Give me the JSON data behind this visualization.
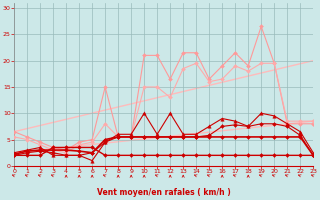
{
  "background_color": "#cce8e8",
  "grid_color": "#99bbbb",
  "xlabel": "Vent moyen/en rafales ( km/h )",
  "xlabel_color": "#cc0000",
  "tick_color": "#cc0000",
  "xlim": [
    0,
    23
  ],
  "ylim": [
    0,
    31
  ],
  "yticks": [
    0,
    5,
    10,
    15,
    20,
    25,
    30
  ],
  "xticks": [
    0,
    1,
    2,
    3,
    4,
    5,
    6,
    7,
    8,
    9,
    10,
    11,
    12,
    13,
    14,
    15,
    16,
    17,
    18,
    19,
    20,
    21,
    22,
    23
  ],
  "series": [
    {
      "x": [
        0,
        23
      ],
      "y": [
        6.5,
        20.0
      ],
      "color": "#ffbbbb",
      "marker": null,
      "markersize": 0,
      "linewidth": 1.0,
      "linestyle": "-",
      "zorder": 1
    },
    {
      "x": [
        0,
        23
      ],
      "y": [
        2.5,
        8.5
      ],
      "color": "#ffbbbb",
      "marker": null,
      "markersize": 0,
      "linewidth": 1.0,
      "linestyle": "-",
      "zorder": 1
    },
    {
      "x": [
        0,
        1,
        2,
        3,
        4,
        5,
        6,
        7,
        8,
        9,
        10,
        11,
        12,
        13,
        14,
        15,
        16,
        17,
        18,
        19,
        20,
        21,
        22,
        23
      ],
      "y": [
        6.5,
        5.5,
        4.5,
        3.5,
        3.0,
        4.5,
        5.0,
        15.0,
        5.5,
        5.5,
        21.0,
        21.0,
        16.5,
        21.5,
        21.5,
        16.5,
        19.0,
        21.5,
        19.0,
        26.5,
        19.5,
        8.0,
        8.0,
        8.0
      ],
      "color": "#ff9999",
      "marker": "D",
      "markersize": 2,
      "linewidth": 0.8,
      "linestyle": "-",
      "zorder": 3
    },
    {
      "x": [
        0,
        1,
        2,
        3,
        4,
        5,
        6,
        7,
        8,
        9,
        10,
        11,
        12,
        13,
        14,
        15,
        16,
        17,
        18,
        19,
        20,
        21,
        22,
        23
      ],
      "y": [
        5.5,
        5.0,
        4.0,
        3.0,
        2.5,
        4.0,
        4.5,
        8.0,
        5.5,
        5.5,
        15.0,
        15.0,
        13.0,
        18.5,
        19.5,
        16.0,
        16.5,
        19.0,
        18.0,
        19.5,
        19.5,
        8.5,
        8.5,
        8.5
      ],
      "color": "#ffaaaa",
      "marker": "D",
      "markersize": 2,
      "linewidth": 0.8,
      "linestyle": "-",
      "zorder": 3
    },
    {
      "x": [
        0,
        1,
        2,
        3,
        4,
        5,
        6,
        7,
        8,
        9,
        10,
        11,
        12,
        13,
        14,
        15,
        16,
        17,
        18,
        19,
        20,
        21,
        22,
        23
      ],
      "y": [
        2.5,
        3.0,
        3.5,
        2.0,
        2.0,
        2.0,
        1.0,
        4.5,
        6.0,
        6.0,
        10.0,
        6.0,
        10.0,
        6.0,
        6.0,
        7.5,
        9.0,
        8.5,
        7.5,
        10.0,
        9.5,
        8.0,
        6.5,
        2.5
      ],
      "color": "#cc0000",
      "marker": "^",
      "markersize": 2.5,
      "linewidth": 0.8,
      "linestyle": "-",
      "zorder": 4
    },
    {
      "x": [
        0,
        1,
        2,
        3,
        4,
        5,
        6,
        7,
        8,
        9,
        10,
        11,
        12,
        13,
        14,
        15,
        16,
        17,
        18,
        19,
        20,
        21,
        22,
        23
      ],
      "y": [
        2.2,
        2.8,
        3.0,
        3.0,
        3.0,
        2.8,
        2.5,
        5.0,
        5.5,
        5.5,
        5.5,
        5.5,
        5.5,
        5.5,
        5.5,
        5.5,
        5.5,
        5.5,
        5.5,
        5.5,
        5.5,
        5.5,
        5.5,
        2.0
      ],
      "color": "#cc0000",
      "marker": "D",
      "markersize": 2,
      "linewidth": 1.2,
      "linestyle": "-",
      "zorder": 4
    },
    {
      "x": [
        0,
        1,
        2,
        3,
        4,
        5,
        6,
        7,
        8,
        9,
        10,
        11,
        12,
        13,
        14,
        15,
        16,
        17,
        18,
        19,
        20,
        21,
        22,
        23
      ],
      "y": [
        2.0,
        2.5,
        2.8,
        2.5,
        2.0,
        2.0,
        2.5,
        4.5,
        5.5,
        5.5,
        5.5,
        5.5,
        5.5,
        5.5,
        5.5,
        5.8,
        7.5,
        7.8,
        7.5,
        8.0,
        8.0,
        7.5,
        5.8,
        2.0
      ],
      "color": "#cc0000",
      "marker": "D",
      "markersize": 2,
      "linewidth": 0.8,
      "linestyle": "-",
      "zorder": 4
    },
    {
      "x": [
        0,
        1,
        2,
        3,
        4,
        5,
        6,
        7,
        8,
        9,
        10,
        11,
        12,
        13,
        14,
        15,
        16,
        17,
        18,
        19,
        20,
        21,
        22,
        23
      ],
      "y": [
        2.0,
        2.0,
        2.0,
        3.5,
        3.5,
        3.5,
        3.5,
        2.0,
        2.0,
        2.0,
        2.0,
        2.0,
        2.0,
        2.0,
        2.0,
        2.0,
        2.0,
        2.0,
        2.0,
        2.0,
        2.0,
        2.0,
        2.0,
        2.0
      ],
      "color": "#cc0000",
      "marker": "D",
      "markersize": 2,
      "linewidth": 1.0,
      "linestyle": "-",
      "zorder": 4
    }
  ],
  "wind_arrows": {
    "x": [
      0,
      1,
      2,
      3,
      4,
      5,
      6,
      7,
      8,
      9,
      10,
      11,
      12,
      13,
      14,
      15,
      16,
      17,
      18,
      19,
      20,
      21,
      22,
      23
    ],
    "angles": [
      225,
      225,
      225,
      225,
      270,
      270,
      270,
      225,
      270,
      270,
      270,
      225,
      270,
      270,
      225,
      225,
      270,
      225,
      270,
      225,
      225,
      225,
      225,
      225
    ]
  }
}
